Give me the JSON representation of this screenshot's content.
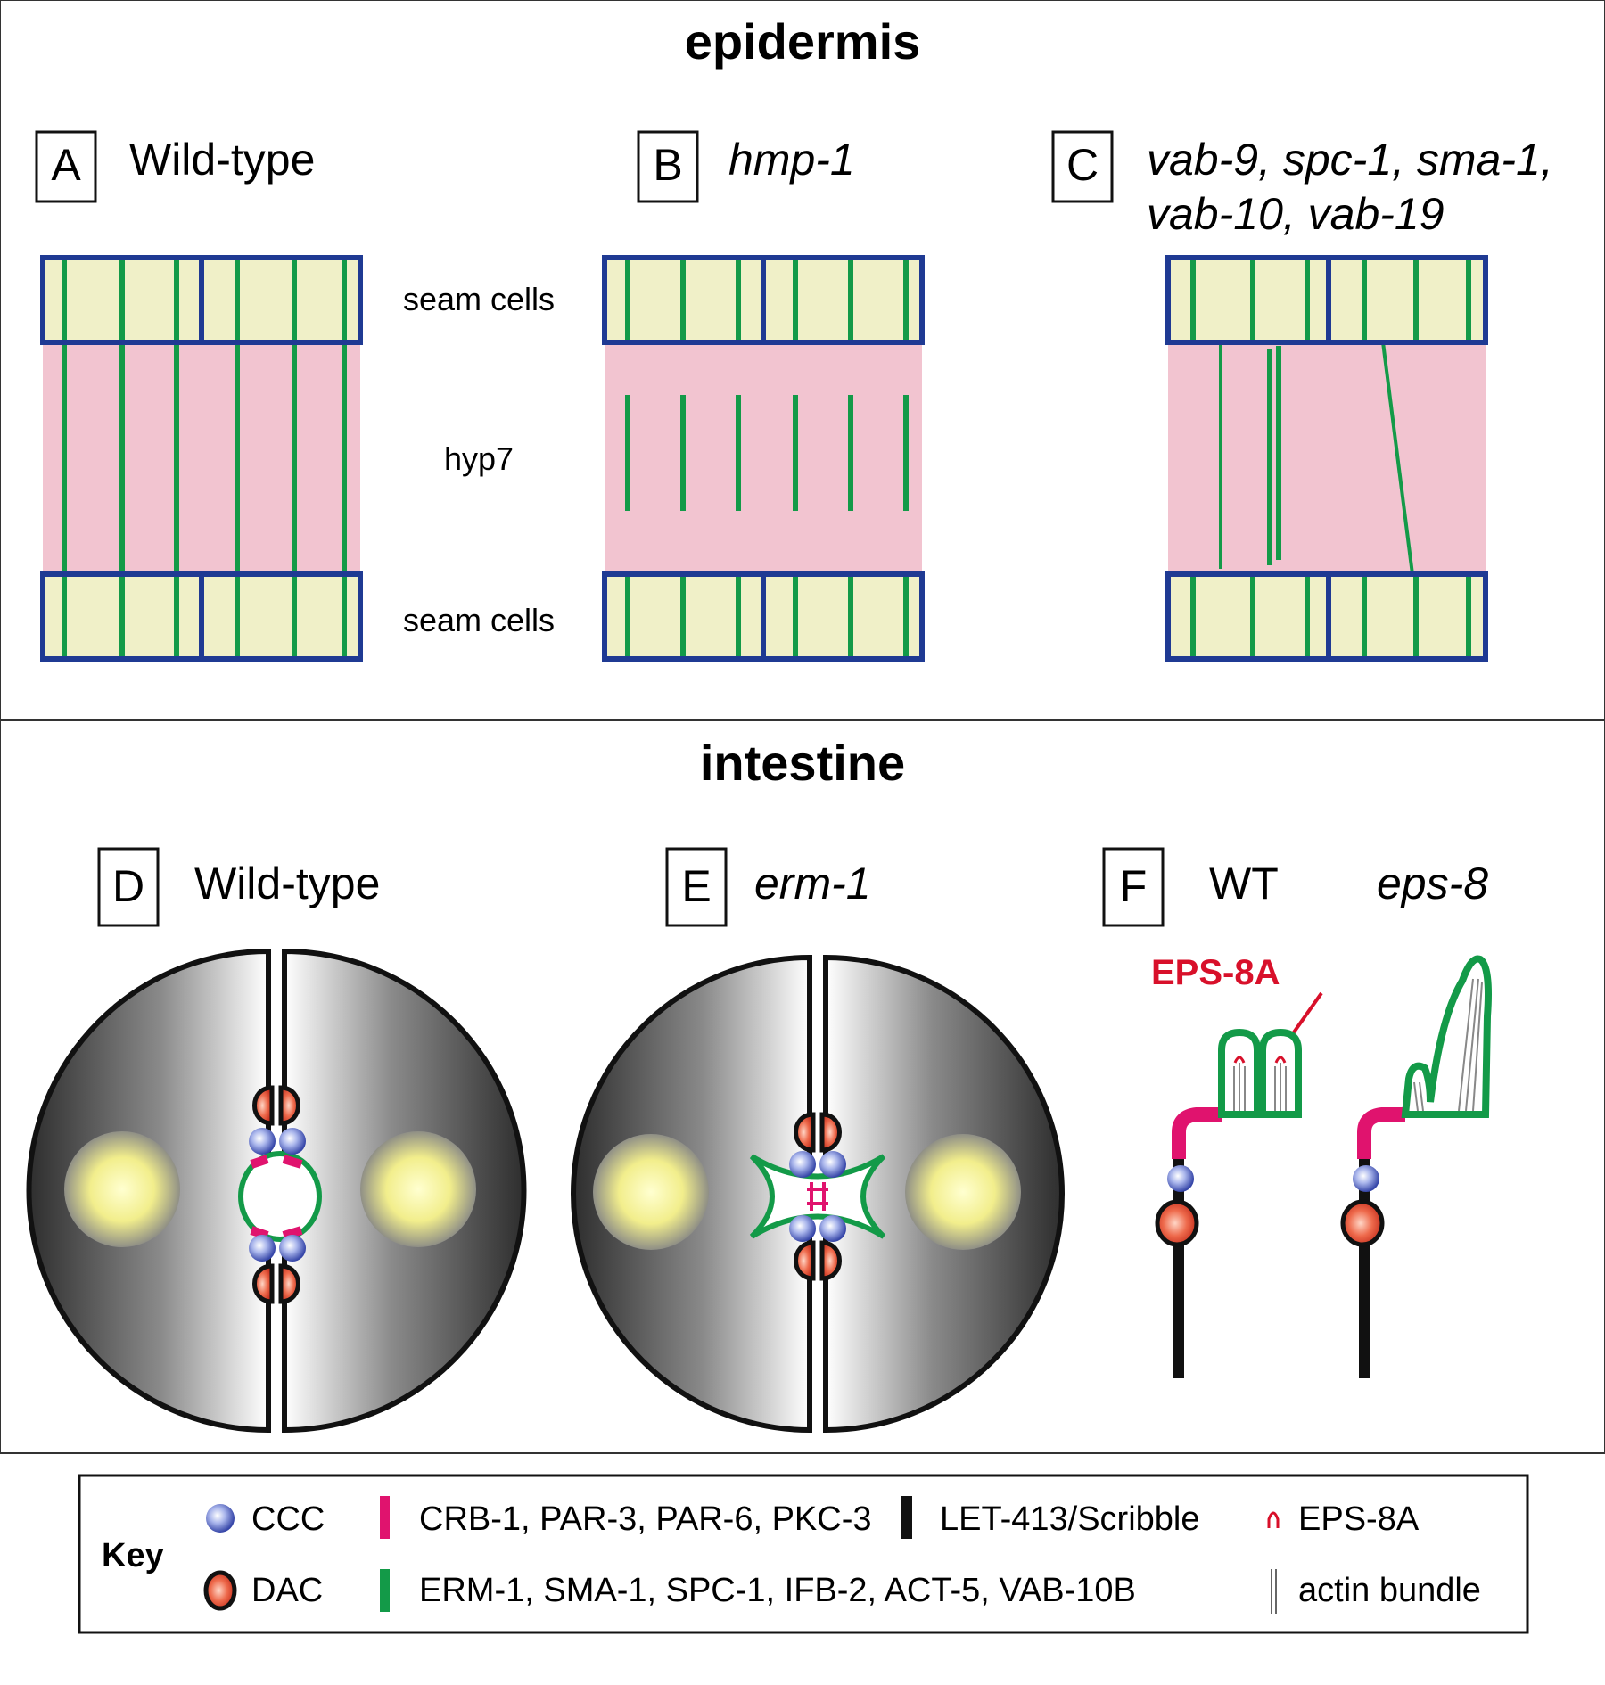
{
  "epidermis": {
    "title": "epidermis",
    "panels": [
      {
        "letter": "A",
        "label": "Wild-type"
      },
      {
        "letter": "B",
        "label": "hmp-1"
      },
      {
        "letter": "C",
        "label_line1": "vab-9, spc-1, sma-1,",
        "label_line2": "vab-10, vab-19"
      }
    ],
    "labels": {
      "seam_top": "seam cells",
      "hyp7": "hyp7",
      "seam_bottom": "seam cells"
    }
  },
  "intestine": {
    "title": "intestine",
    "panels": [
      {
        "letter": "D",
        "label": "Wild-type"
      },
      {
        "letter": "E",
        "label": "erm-1"
      },
      {
        "letter": "F",
        "label_wt": "WT",
        "label_mut": "eps-8"
      }
    ],
    "eps8a_callout": "EPS-8A"
  },
  "key": {
    "title": "Key",
    "items": [
      {
        "symbol": "ccc-icon",
        "label": "CCC"
      },
      {
        "symbol": "dac-icon",
        "label": "DAC"
      },
      {
        "symbol": "magenta-bar",
        "label": "CRB-1, PAR-3, PAR-6, PKC-3"
      },
      {
        "symbol": "green-bar",
        "label": "ERM-1, SMA-1, SPC-1, IFB-2, ACT-5, VAB-10B"
      },
      {
        "symbol": "black-bar",
        "label": "LET-413/Scribble"
      },
      {
        "symbol": "eps8a-icon",
        "label": "EPS-8A"
      },
      {
        "symbol": "actin-bundle-icon",
        "label": "actin bundle"
      }
    ]
  },
  "colors": {
    "seam_fill": "#f0f0c8",
    "hyp7_fill": "#f2c4d0",
    "border_blue": "#1f3a93",
    "green": "#139a48",
    "magenta": "#e0136e",
    "red_label": "#d8102a"
  }
}
